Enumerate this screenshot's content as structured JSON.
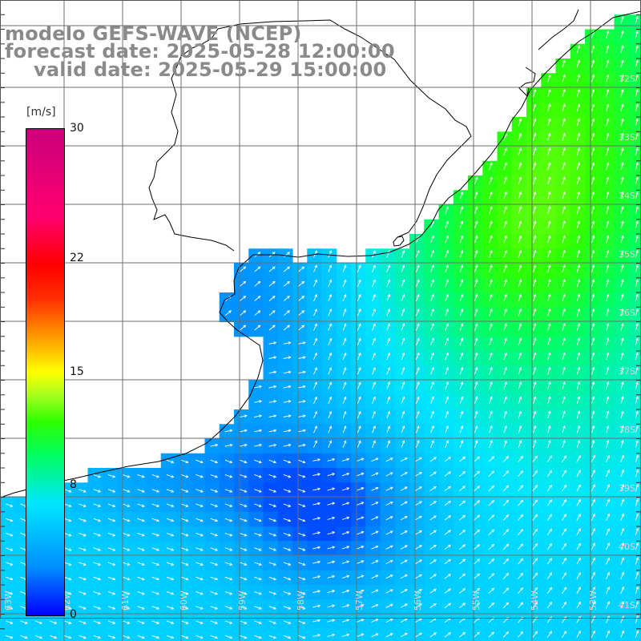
{
  "titles": {
    "line1": "modelo GEFS-WAVE (NCEP)",
    "line2": "forecast date: 2025-05-28 12:00:00",
    "line3": "valid date: 2025-05-29 15:00:00"
  },
  "colorbar": {
    "unit": "[m/s]",
    "ticks": [
      {
        "label": "30",
        "value": 30
      },
      {
        "label": "22",
        "value": 22
      },
      {
        "label": "15",
        "value": 15
      },
      {
        "label": "8",
        "value": 8
      },
      {
        "label": "0",
        "value": 0
      }
    ],
    "min": 0,
    "max": 30
  },
  "latitude_labels": [
    "32S",
    "33S",
    "34S",
    "35S",
    "36S",
    "37S",
    "38S",
    "39S",
    "40S",
    "41S"
  ],
  "longitude_labels": [
    "63W",
    "62W",
    "61W",
    "60W",
    "59W",
    "58W",
    "57W",
    "56W",
    "55W",
    "54W",
    "53W"
  ],
  "colors": {
    "land": "#ffffff",
    "coast": "#000000",
    "grid": "#6e6e6e",
    "title_text": "#8a8a8a",
    "arrow": "#ffffff"
  }
}
